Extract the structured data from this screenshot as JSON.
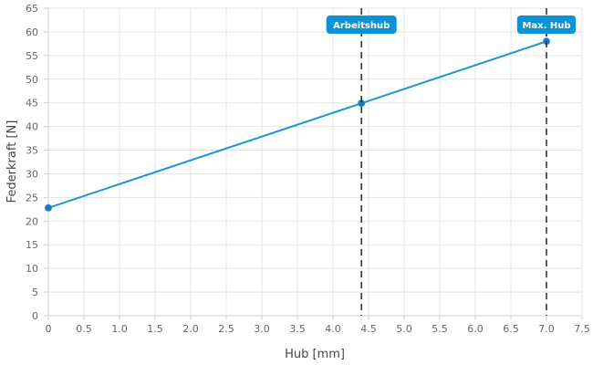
{
  "chart_data": {
    "type": "line",
    "xlabel": "Hub [mm]",
    "ylabel": "Federkraft [N]",
    "xlim": [
      0,
      7.5
    ],
    "ylim": [
      0,
      65
    ],
    "x_ticks": [
      "0",
      "0.5",
      "1.0",
      "1.5",
      "2.0",
      "2.5",
      "3.0",
      "3.5",
      "4.0",
      "4.5",
      "5.0",
      "5.5",
      "6.0",
      "6.5",
      "7.0",
      "7.5"
    ],
    "y_ticks": [
      "0",
      "5",
      "10",
      "15",
      "20",
      "25",
      "30",
      "35",
      "40",
      "45",
      "50",
      "55",
      "60",
      "65"
    ],
    "grid": true,
    "series": [
      {
        "x": [
          0,
          4.4,
          7.0
        ],
        "y": [
          22.8,
          44.9,
          58.0
        ]
      }
    ],
    "markers": [
      {
        "label": "Arbeitshub",
        "x": 4.4
      },
      {
        "label": "Max. Hub",
        "x": 7.0
      }
    ],
    "colors": {
      "line": "#1a96d0",
      "point": "#1878a8",
      "badge": "#0a93d6",
      "marker_line": "#333333"
    }
  }
}
